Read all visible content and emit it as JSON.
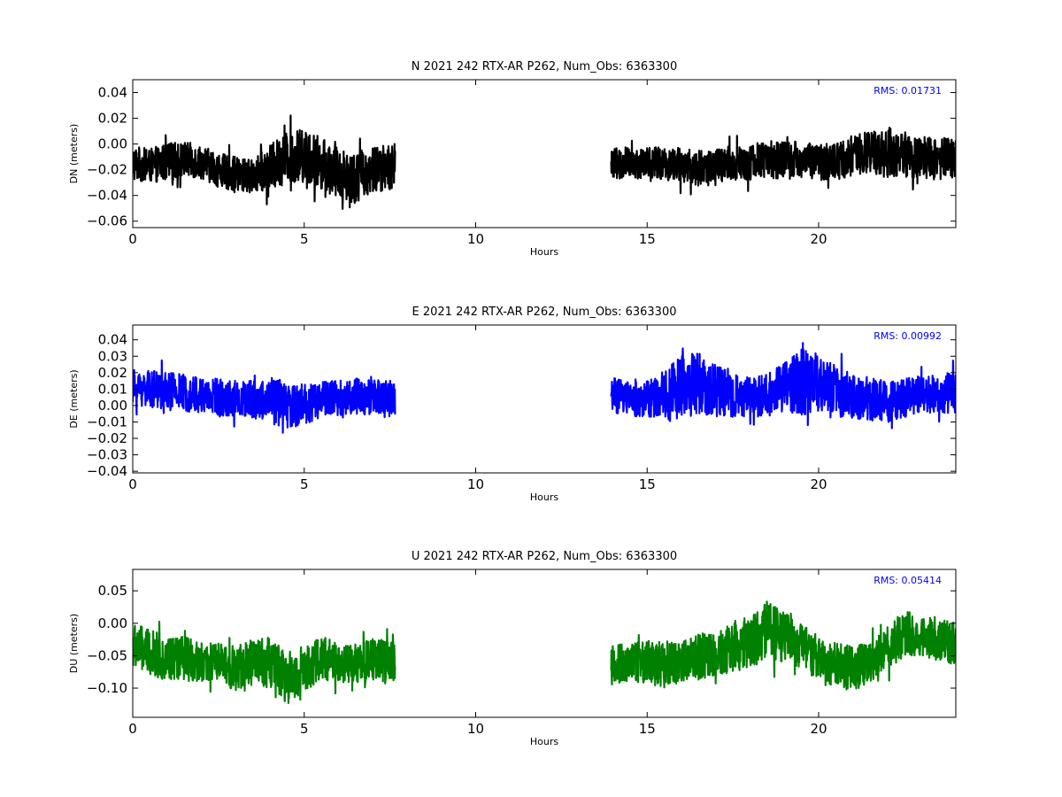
{
  "chart_data": [
    {
      "type": "line",
      "title": "N 2021 242 RTX-AR  P262, Num_Obs: 6363300",
      "xlabel": "Hours",
      "ylabel": "DN (meters)",
      "xlim": [
        0,
        24
      ],
      "ylim": [
        -0.065,
        0.05
      ],
      "xticks": [
        "0",
        "5",
        "10",
        "15",
        "20"
      ],
      "yticks": [
        "0.04",
        "0.02",
        "0.00",
        "−0.02",
        "−0.04",
        "−0.06"
      ],
      "ytick_values": [
        0.04,
        0.02,
        0.0,
        -0.02,
        -0.04,
        -0.06
      ],
      "annotation": "RMS:  0.01731",
      "color": "#000000",
      "annotation_color": "#0000ff",
      "series": [
        {
          "segments": [
            {
              "x": [
                0,
                0.5,
                1.0,
                1.5,
                2.0,
                2.5,
                3.0,
                3.5,
                4.0,
                4.5,
                5.0,
                5.5,
                6.0,
                6.5,
                7.0,
                7.65
              ],
              "mean": [
                -0.015,
                -0.017,
                -0.014,
                -0.012,
                -0.014,
                -0.02,
                -0.024,
                -0.025,
                -0.019,
                -0.01,
                -0.009,
                -0.015,
                -0.023,
                -0.026,
                -0.02,
                -0.017
              ],
              "amp": [
                0.014,
                0.013,
                0.015,
                0.014,
                0.013,
                0.013,
                0.014,
                0.013,
                0.018,
                0.02,
                0.021,
                0.02,
                0.02,
                0.02,
                0.018,
                0.018
              ]
            },
            {
              "x": [
                13.95,
                14.5,
                15.0,
                15.5,
                16.0,
                16.5,
                17.0,
                17.5,
                18.0,
                18.5,
                19.0,
                19.5,
                20.0,
                20.5,
                21.0,
                21.5,
                22.0,
                22.5,
                23.0,
                23.5,
                24.0
              ],
              "mean": [
                -0.016,
                -0.015,
                -0.014,
                -0.015,
                -0.017,
                -0.019,
                -0.018,
                -0.016,
                -0.014,
                -0.012,
                -0.013,
                -0.012,
                -0.014,
                -0.013,
                -0.009,
                -0.007,
                -0.006,
                -0.008,
                -0.01,
                -0.012,
                -0.01
              ],
              "amp": [
                0.013,
                0.013,
                0.012,
                0.013,
                0.014,
                0.014,
                0.015,
                0.015,
                0.014,
                0.015,
                0.015,
                0.014,
                0.014,
                0.015,
                0.016,
                0.017,
                0.02,
                0.018,
                0.017,
                0.016,
                0.016
              ]
            }
          ]
        }
      ]
    },
    {
      "type": "line",
      "title": "E 2021 242 RTX-AR  P262, Num_Obs: 6363300",
      "xlabel": "Hours",
      "ylabel": "DE (meters)",
      "xlim": [
        0,
        24
      ],
      "ylim": [
        -0.041,
        0.049
      ],
      "xticks": [
        "0",
        "5",
        "10",
        "15",
        "20"
      ],
      "yticks": [
        "0.04",
        "0.03",
        "0.02",
        "0.01",
        "0.00",
        "−0.01",
        "−0.02",
        "−0.03",
        "−0.04"
      ],
      "ytick_values": [
        0.04,
        0.03,
        0.02,
        0.01,
        0.0,
        -0.01,
        -0.02,
        -0.03,
        -0.04
      ],
      "annotation": "RMS:  0.00992",
      "color": "#0000ff",
      "annotation_color": "#0000ff",
      "series": [
        {
          "segments": [
            {
              "x": [
                0,
                0.5,
                1.0,
                1.5,
                2.0,
                2.5,
                3.0,
                3.5,
                4.0,
                4.5,
                5.0,
                5.5,
                6.0,
                6.5,
                7.0,
                7.65
              ],
              "mean": [
                0.011,
                0.01,
                0.009,
                0.008,
                0.006,
                0.005,
                0.004,
                0.004,
                0.003,
                0.0,
                0.001,
                0.004,
                0.005,
                0.006,
                0.005,
                0.004
              ],
              "amp": [
                0.011,
                0.011,
                0.012,
                0.011,
                0.012,
                0.012,
                0.011,
                0.012,
                0.014,
                0.015,
                0.013,
                0.011,
                0.011,
                0.011,
                0.011,
                0.012
              ]
            },
            {
              "x": [
                13.95,
                14.5,
                15.0,
                15.5,
                16.0,
                16.5,
                17.0,
                17.5,
                18.0,
                18.5,
                19.0,
                19.5,
                20.0,
                20.5,
                21.0,
                21.5,
                22.0,
                22.5,
                23.0,
                23.5,
                24.0
              ],
              "mean": [
                0.006,
                0.005,
                0.004,
                0.006,
                0.012,
                0.014,
                0.009,
                0.006,
                0.005,
                0.006,
                0.012,
                0.015,
                0.013,
                0.008,
                0.005,
                0.004,
                0.002,
                0.005,
                0.006,
                0.007,
                0.008
              ],
              "amp": [
                0.011,
                0.011,
                0.012,
                0.015,
                0.02,
                0.019,
                0.016,
                0.013,
                0.012,
                0.013,
                0.016,
                0.02,
                0.02,
                0.016,
                0.014,
                0.013,
                0.013,
                0.012,
                0.011,
                0.012,
                0.013
              ]
            }
          ]
        }
      ]
    },
    {
      "type": "line",
      "title": "U 2021 242 RTX-AR  P262, Num_Obs: 6363300",
      "xlabel": "Hours",
      "ylabel": "DU (meters)",
      "xlim": [
        0,
        24
      ],
      "ylim": [
        -0.145,
        0.083
      ],
      "xticks": [
        "0",
        "5",
        "10",
        "15",
        "20"
      ],
      "yticks": [
        "0.05",
        "0.00",
        "−0.05",
        "−0.10"
      ],
      "ytick_values": [
        0.05,
        0.0,
        -0.05,
        -0.1
      ],
      "annotation": "RMS:  0.05414",
      "color": "#008000",
      "annotation_color": "#0000ff",
      "series": [
        {
          "segments": [
            {
              "x": [
                0,
                0.5,
                1.0,
                1.5,
                2.0,
                2.5,
                3.0,
                3.5,
                4.0,
                4.5,
                5.0,
                5.5,
                6.0,
                6.5,
                7.0,
                7.65
              ],
              "mean": [
                -0.035,
                -0.045,
                -0.055,
                -0.055,
                -0.06,
                -0.06,
                -0.07,
                -0.06,
                -0.06,
                -0.085,
                -0.07,
                -0.055,
                -0.06,
                -0.065,
                -0.055,
                -0.06
              ],
              "amp": [
                0.035,
                0.035,
                0.035,
                0.035,
                0.03,
                0.03,
                0.035,
                0.035,
                0.04,
                0.04,
                0.035,
                0.035,
                0.03,
                0.03,
                0.035,
                0.03
              ]
            },
            {
              "x": [
                13.95,
                14.5,
                15.0,
                15.5,
                16.0,
                16.5,
                17.0,
                17.5,
                18.0,
                18.5,
                19.0,
                19.5,
                20.0,
                20.5,
                21.0,
                21.5,
                22.0,
                22.5,
                23.0,
                23.5,
                24.0
              ],
              "mean": [
                -0.065,
                -0.06,
                -0.06,
                -0.065,
                -0.06,
                -0.05,
                -0.05,
                -0.035,
                -0.03,
                -0.01,
                -0.02,
                -0.035,
                -0.055,
                -0.065,
                -0.07,
                -0.06,
                -0.04,
                -0.015,
                -0.02,
                -0.025,
                -0.03
              ],
              "amp": [
                0.03,
                0.03,
                0.035,
                0.035,
                0.03,
                0.035,
                0.035,
                0.04,
                0.04,
                0.045,
                0.04,
                0.035,
                0.035,
                0.035,
                0.035,
                0.03,
                0.035,
                0.035,
                0.03,
                0.035,
                0.035
              ]
            }
          ]
        }
      ]
    }
  ]
}
